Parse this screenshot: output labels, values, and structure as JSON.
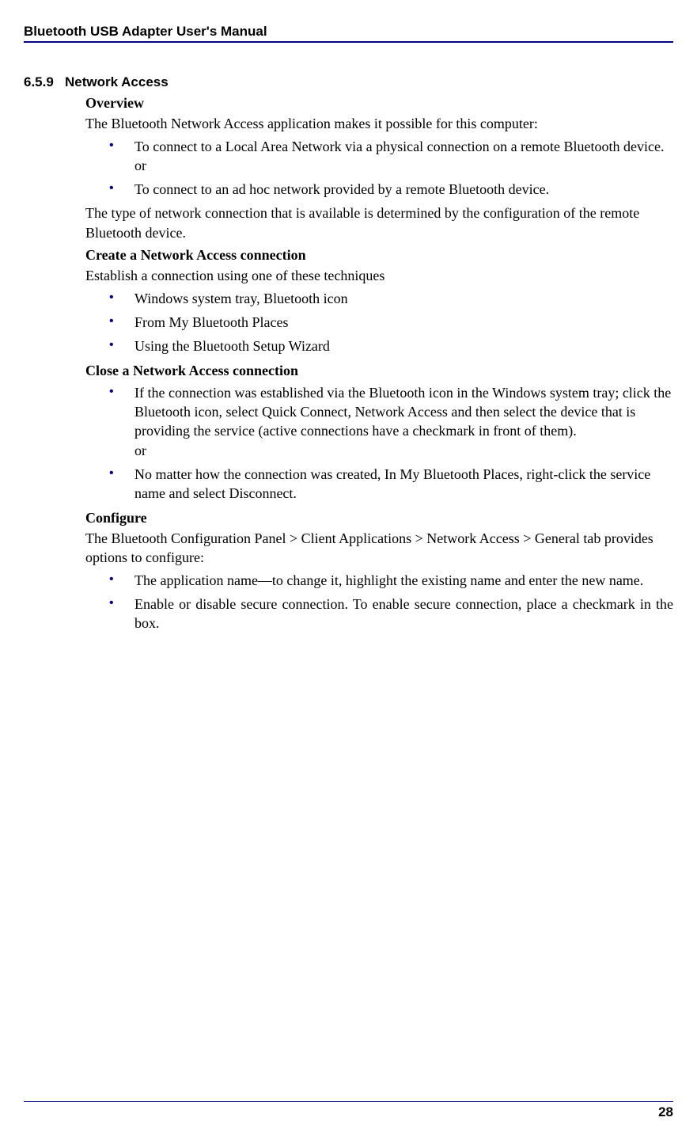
{
  "header": {
    "manual_title": "Bluetooth USB Adapter User's Manual"
  },
  "section": {
    "number": "6.5.9",
    "title": "Network Access"
  },
  "overview": {
    "heading": "Overview",
    "intro": "The Bluetooth Network Access application makes it possible for this computer:",
    "bullets": [
      "To connect to a Local Area Network via a physical connection on a remote Bluetooth device.\nor",
      "To connect to an ad hoc network provided by a remote Bluetooth device."
    ],
    "outro": "The type of network connection that is available is determined by the configuration of the remote Bluetooth device."
  },
  "create": {
    "heading": "Create a Network Access connection",
    "intro": "Establish a connection using one of these techniques",
    "bullets": [
      "Windows system tray, Bluetooth icon",
      "From My Bluetooth Places",
      "Using the Bluetooth Setup Wizard"
    ]
  },
  "close": {
    "heading": "Close a Network Access connection",
    "bullets": [
      "If the connection was established via the Bluetooth icon in the Windows system tray; click the Bluetooth icon, select Quick Connect, Network Access and then select the device that is providing the service (active connections have a checkmark in front of them).\nor",
      "No matter how the connection was created, In My Bluetooth Places, right-click the service name and select Disconnect."
    ]
  },
  "configure": {
    "heading": "Configure",
    "intro": "The Bluetooth Configuration Panel > Client Applications > Network Access > General tab provides options to configure:",
    "bullets": [
      "The application name—to change it, highlight the existing name and enter the new name.",
      "Enable or disable secure connection. To enable secure connection, place a checkmark in the box."
    ]
  },
  "footer": {
    "page_number": "28"
  }
}
